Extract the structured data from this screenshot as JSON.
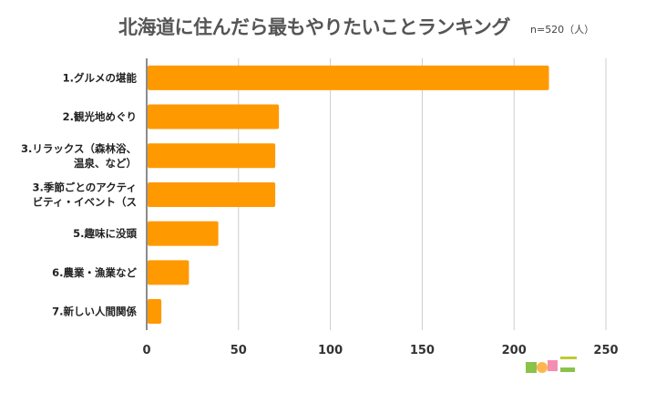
{
  "chart_data": {
    "type": "bar",
    "orientation": "horizontal",
    "title": "北海道に住んだら最もやりたいことランキング",
    "note": "n=520（人）",
    "categories": [
      [
        "1.グルメの堪能"
      ],
      [
        "2.観光地めぐり"
      ],
      [
        "3.リラックス（森林浴、",
        "温泉、など）"
      ],
      [
        "3.季節ごとのアクティ",
        "ビティ・イベント（ス"
      ],
      [
        "5.趣味に没頭"
      ],
      [
        "6.農業・漁業など"
      ],
      [
        "7.新しい人間関係"
      ]
    ],
    "values": [
      219,
      72,
      70,
      70,
      39,
      23,
      8
    ],
    "xlim": [
      0,
      250
    ],
    "xticks": [
      0,
      50,
      100,
      150,
      200,
      250
    ],
    "grid": true,
    "bar_color": "#FF9900"
  }
}
